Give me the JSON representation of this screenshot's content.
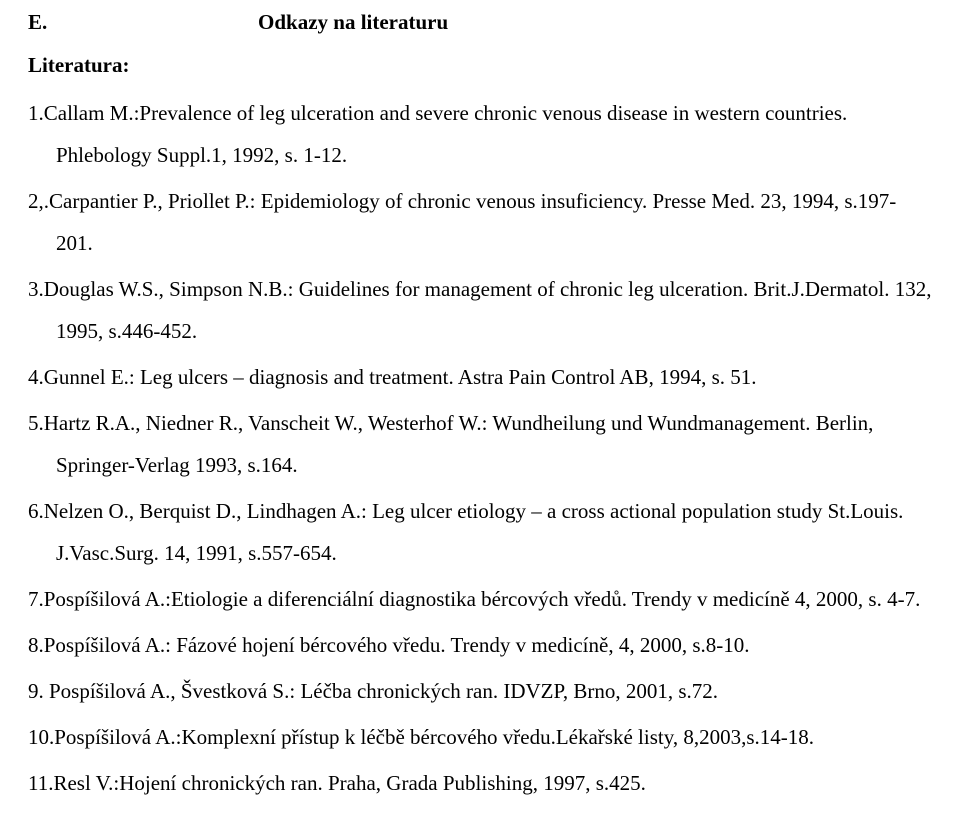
{
  "header": {
    "letter": "E.",
    "title": "Odkazy na literaturu"
  },
  "sectionLabel": "Literatura:",
  "references": [
    "1.Callam M.:Prevalence of leg ulceration and severe chronic venous disease in western countries. Phlebology Suppl.1, 1992, s. 1-12.",
    "2,.Carpantier P., Priollet P.: Epidemiology of chronic venous insuficiency. Presse Med. 23, 1994, s.197-201.",
    "3.Douglas W.S., Simpson N.B.: Guidelines for management of chronic leg ulceration. Brit.J.Dermatol. 132, 1995, s.446-452.",
    "4.Gunnel E.: Leg ulcers – diagnosis and treatment. Astra Pain Control AB, 1994, s. 51.",
    "5.Hartz R.A., Niedner R., Vanscheit W., Westerhof W.: Wundheilung und Wundmanagement. Berlin, Springer-Verlag 1993, s.164.",
    "6.Nelzen O., Berquist D., Lindhagen A.: Leg ulcer etiology – a cross actional population study St.Louis. J.Vasc.Surg. 14, 1991, s.557-654.",
    "7.Pospíšilová A.:Etiologie a diferenciální diagnostika bércových vředů. Trendy v medicíně 4, 2000, s. 4-7.",
    "8.Pospíšilová A.: Fázové hojení bércového vředu. Trendy v medicíně, 4, 2000, s.8-10.",
    "9. Pospíšilová A., Švestková S.: Léčba chronických ran. IDVZP, Brno, 2001, s.72.",
    "10.Pospíšilová A.:Komplexní přístup k léčbě bércového vředu.Lékařské listy, 8,2003,s.14-18.",
    "11.Resl V.:Hojení chronických ran. Praha, Grada Publishing, 1997, s.425."
  ]
}
